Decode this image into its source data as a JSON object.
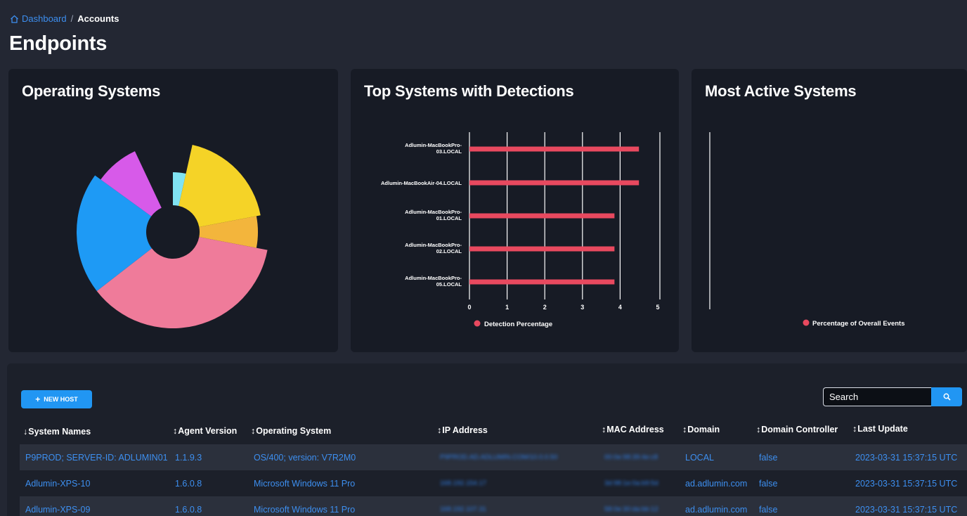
{
  "breadcrumb": {
    "home": "Dashboard",
    "separator": "/",
    "current": "Accounts"
  },
  "page_title": "Endpoints",
  "cards": {
    "os": {
      "title": "Operating Systems"
    },
    "detections": {
      "title": "Top Systems with Detections"
    },
    "active": {
      "title": "Most Active Systems",
      "legend": "Percentage of Overall Events"
    }
  },
  "chart_data": [
    {
      "type": "pie",
      "title": "Operating Systems",
      "slices": [
        {
          "value": 0.035,
          "radius": 0.47,
          "color": "#80e3f2"
        },
        {
          "value": 0.185,
          "radius": 0.89,
          "color": "#f5d327"
        },
        {
          "value": 0.06,
          "radius": 0.83,
          "color": "#f3b53c"
        },
        {
          "value": 0.365,
          "radius": 0.99,
          "color": "#ef7b9a"
        },
        {
          "value": 0.205,
          "radius": 0.99,
          "color": "#1e9af5"
        },
        {
          "value": 0.08,
          "radius": 0.89,
          "color": "#d75ae9"
        },
        {
          "value": 0.07,
          "radius": 0.0,
          "color": "#171b25"
        }
      ],
      "units": {
        "radius": "fraction of largest slice radius"
      }
    },
    {
      "type": "bar",
      "orientation": "horizontal",
      "title": "Top Systems with Detections",
      "categories": [
        [
          "Adlumin-MacBookPro-",
          "03.LOCAL"
        ],
        [
          "Adlumin-MacBookAir-04.LOCAL"
        ],
        [
          "Adlumin-MacBookPro-",
          "01.LOCAL"
        ],
        [
          "Adlumin-MacBookPro-",
          "02.LOCAL"
        ],
        [
          "Adlumin-MacBookPro-",
          "05.LOCAL"
        ]
      ],
      "values": [
        4.5,
        4.5,
        3.85,
        3.85,
        3.85
      ],
      "xticks": [
        "0",
        "1",
        "2",
        "3",
        "4",
        "5"
      ],
      "xlim": [
        0,
        5
      ],
      "legend": "Detection Percentage",
      "color": "#e8495f",
      "grid": true
    }
  ],
  "table": {
    "new_host_label": "NEW HOST",
    "search_placeholder": "Search",
    "columns": [
      {
        "arrow": "↓",
        "label": "System Names"
      },
      {
        "arrow": "↕",
        "label": "Agent Version"
      },
      {
        "arrow": "↕",
        "label": "Operating System"
      },
      {
        "arrow": "↕",
        "label": "IP Address"
      },
      {
        "arrow": "↕",
        "label": "MAC Address"
      },
      {
        "arrow": "↕",
        "label": "Domain"
      },
      {
        "arrow": "↕",
        "label": "Domain Controller"
      },
      {
        "arrow": "↕",
        "label": "Last Update"
      }
    ],
    "rows": [
      {
        "name": "P9PROD; SERVER-ID: ADLUMIN01",
        "agent": "1.1.9.3",
        "os": "OS/400; version: V7R2M0",
        "ip": "P9PROD.AD.ADLUMIN.COM/10.0.0.50",
        "mac": "00:0e:98:39:4e:c8",
        "domain": "LOCAL",
        "dc": "false",
        "updated": "2023-03-31 15:37:15 UTC"
      },
      {
        "name": "Adlumin-XPS-10",
        "agent": "1.6.0.8",
        "os": "Microsoft Windows 11 Pro",
        "ip": "168.192.154.17",
        "mac": "3d:98:1e:0a:b9:5d",
        "domain": "ad.adlumin.com",
        "dc": "false",
        "updated": "2023-03-31 15:37:15 UTC"
      },
      {
        "name": "Adlumin-XPS-09",
        "agent": "1.6.0.8",
        "os": "Microsoft Windows 11 Pro",
        "ip": "168.192.107.31",
        "mac": "58:0e:30:da:bb:12",
        "domain": "ad.adlumin.com",
        "dc": "false",
        "updated": "2023-03-31 15:37:15 UTC"
      }
    ]
  }
}
